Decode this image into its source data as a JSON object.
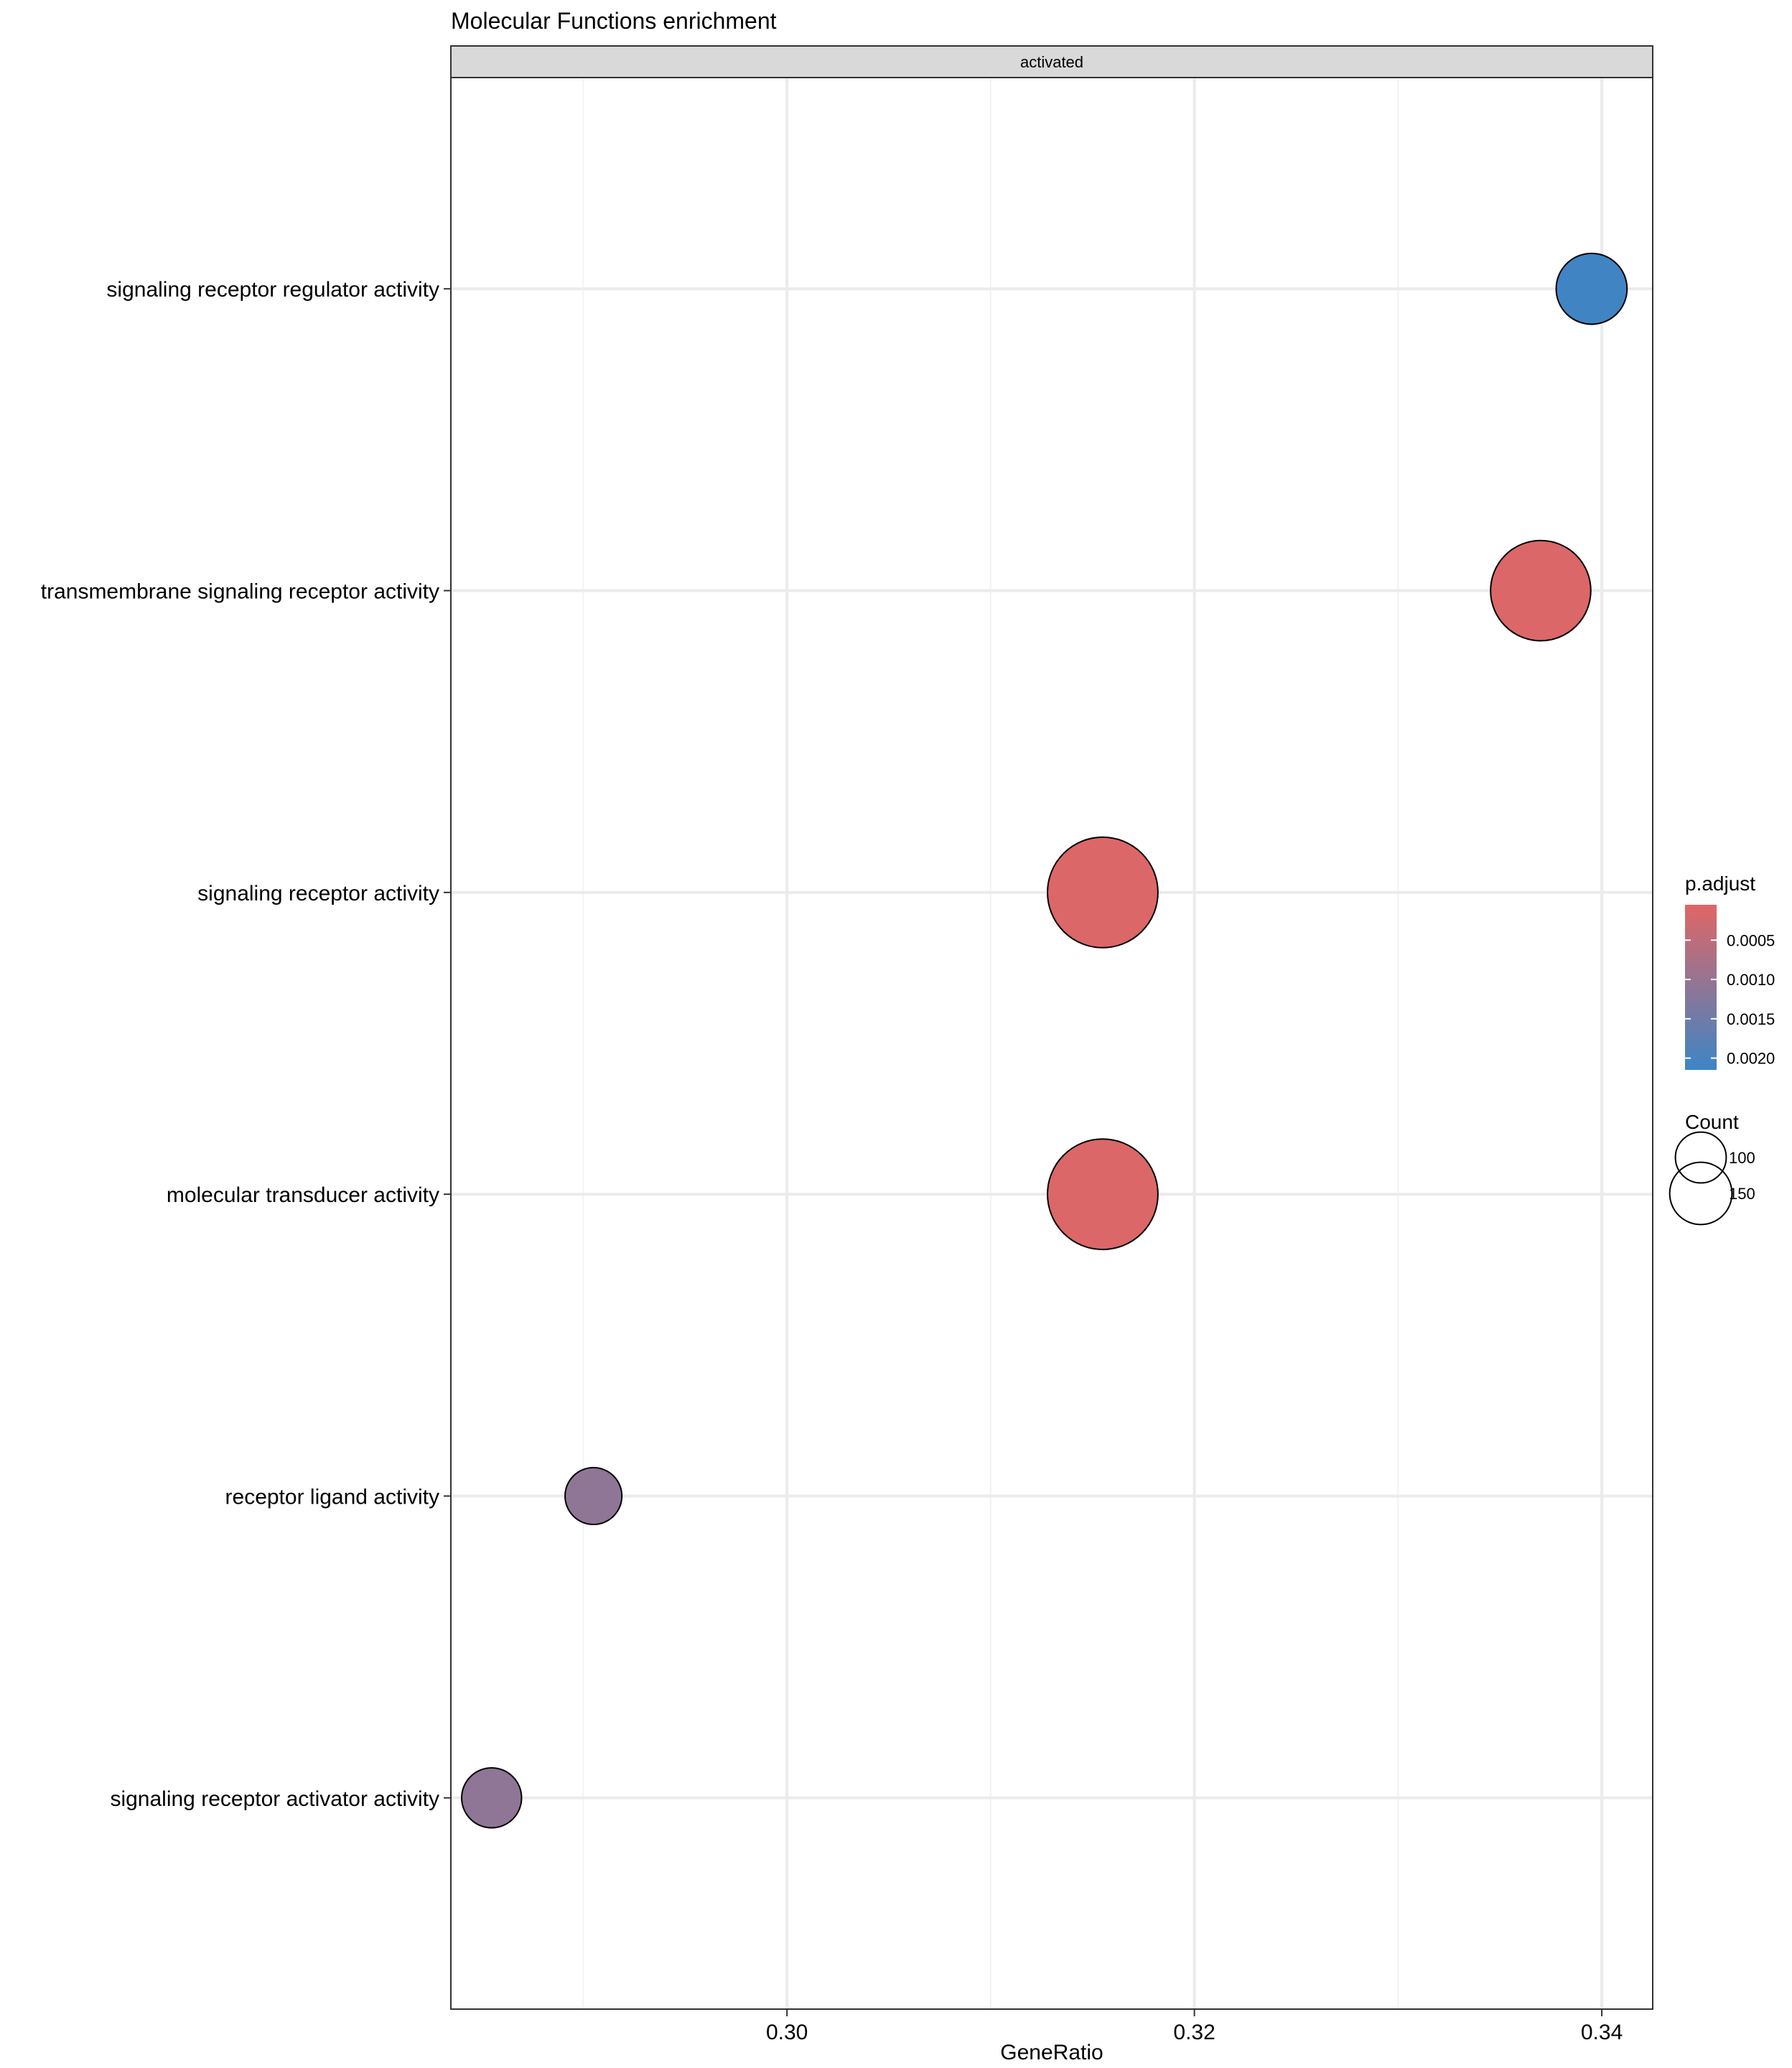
{
  "chart_data": {
    "type": "scatter",
    "title": "Molecular Functions enrichment",
    "facet_label": "activated",
    "xlabel": "GeneRatio",
    "ylabel": "",
    "xlim": [
      0.2835,
      0.3425
    ],
    "x_ticks": [
      0.3,
      0.32,
      0.34
    ],
    "x_tick_labels": [
      "0.30",
      "0.32",
      "0.34"
    ],
    "grid": true,
    "categories": [
      "signaling receptor regulator activity",
      "transmembrane signaling receptor activity",
      "signaling receptor activity",
      "molecular transducer activity",
      "receptor ligand activity",
      "signaling receptor activator activity"
    ],
    "points": [
      {
        "term": "signaling receptor regulator activity",
        "gene_ratio": 0.3395,
        "p_adjust": 0.0021,
        "count": 70
      },
      {
        "term": "transmembrane signaling receptor activity",
        "gene_ratio": 0.337,
        "p_adjust": 0.0001,
        "count": 140
      },
      {
        "term": "signaling receptor activity",
        "gene_ratio": 0.3155,
        "p_adjust": 0.0001,
        "count": 170
      },
      {
        "term": "molecular transducer activity",
        "gene_ratio": 0.3155,
        "p_adjust": 0.0001,
        "count": 170
      },
      {
        "term": "receptor ligand activity",
        "gene_ratio": 0.2905,
        "p_adjust": 0.0011,
        "count": 45
      },
      {
        "term": "signaling receptor activator activity",
        "gene_ratio": 0.2855,
        "p_adjust": 0.0011,
        "count": 50
      }
    ],
    "color_legend": {
      "title": "p.adjust",
      "min": 5e-05,
      "max": 0.00215,
      "low_color": "#e06666",
      "high_color": "#3d85c6",
      "ticks": [
        0.0005,
        0.001,
        0.0015,
        0.002
      ],
      "tick_labels": [
        "0.0005",
        "0.0010",
        "0.0015",
        "0.0020"
      ]
    },
    "size_legend": {
      "title": "Count",
      "values": [
        100,
        150
      ],
      "labels": [
        "100",
        "150"
      ]
    },
    "legend_position": "right"
  }
}
